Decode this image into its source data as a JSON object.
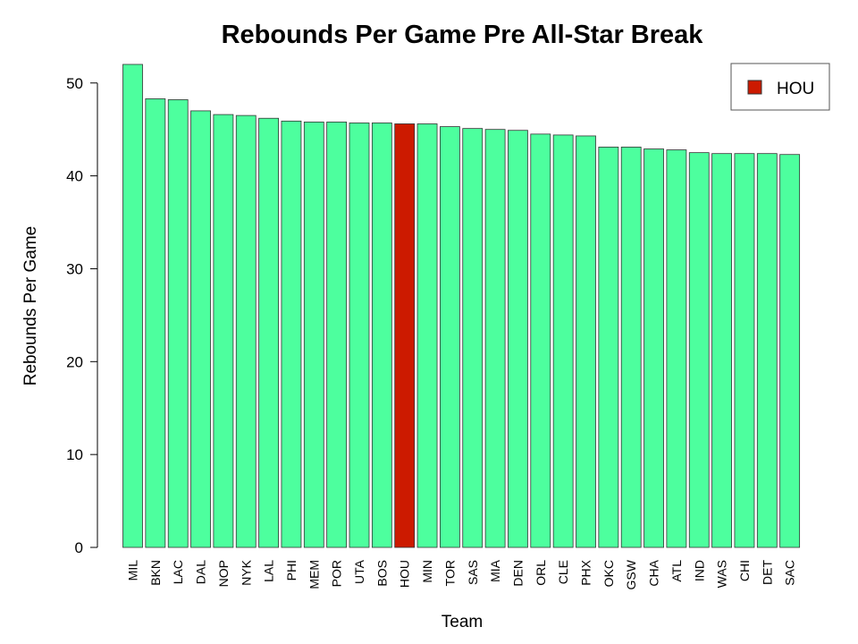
{
  "chart_data": {
    "type": "bar",
    "title": "Rebounds Per Game Pre All-Star Break",
    "xlabel": "Team",
    "ylabel": "Rebounds Per Game",
    "ylim": [
      0,
      52
    ],
    "yticks": [
      0,
      10,
      20,
      30,
      40,
      50
    ],
    "grid": false,
    "legend": {
      "position": "top-right",
      "entries": [
        {
          "label": "HOU",
          "color": "#CC1A00"
        }
      ]
    },
    "highlight": "HOU",
    "colors": {
      "bar": "#4DFF9E",
      "highlight": "#CC1A00",
      "bar_stroke": "#333333"
    },
    "categories": [
      "MIL",
      "BKN",
      "LAC",
      "DAL",
      "NOP",
      "NYK",
      "LAL",
      "PHI",
      "MEM",
      "POR",
      "UTA",
      "BOS",
      "HOU",
      "MIN",
      "TOR",
      "SAS",
      "MIA",
      "DEN",
      "ORL",
      "CLE",
      "PHX",
      "OKC",
      "GSW",
      "CHA",
      "ATL",
      "IND",
      "WAS",
      "CHI",
      "DET",
      "SAC"
    ],
    "values": [
      52.0,
      48.3,
      48.2,
      47.0,
      46.6,
      46.5,
      46.2,
      45.9,
      45.8,
      45.8,
      45.7,
      45.7,
      45.6,
      45.6,
      45.3,
      45.1,
      45.0,
      44.9,
      44.5,
      44.4,
      44.3,
      43.1,
      43.1,
      42.9,
      42.8,
      42.5,
      42.4,
      42.4,
      42.4,
      42.3
    ]
  }
}
